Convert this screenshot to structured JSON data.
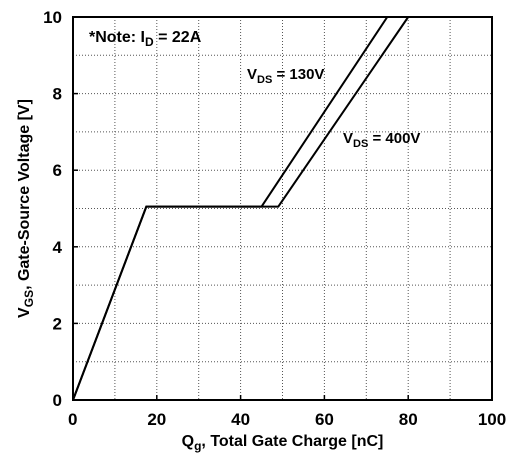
{
  "chart_data": {
    "type": "line",
    "title": "",
    "xlabel": {
      "main": "Q",
      "sub": "g",
      "rest": ", Total Gate Charge [nC]"
    },
    "ylabel": {
      "main": "V",
      "sub": "GS",
      "rest": ", Gate-Source Voltage [V]"
    },
    "xlim": [
      0,
      100
    ],
    "ylim": [
      0,
      10
    ],
    "x_major_ticks": [
      0,
      20,
      40,
      60,
      80,
      100
    ],
    "y_major_ticks": [
      0,
      2,
      4,
      6,
      8,
      10
    ],
    "grid": "dotted, every 10 nC and 1 V",
    "note": {
      "prefix": "*Note: I",
      "sub": "D",
      "suffix": " = 22A"
    },
    "series": [
      {
        "name": {
          "main": "V",
          "sub": "DS",
          "suffix": " = 130V"
        },
        "points": [
          [
            0,
            0
          ],
          [
            17.5,
            5.05
          ],
          [
            45,
            5.05
          ],
          [
            75,
            10
          ]
        ]
      },
      {
        "name": {
          "main": "V",
          "sub": "DS",
          "suffix": " = 400V"
        },
        "points": [
          [
            0,
            0
          ],
          [
            17.5,
            5.05
          ],
          [
            49,
            5.05
          ],
          [
            80,
            10
          ]
        ]
      }
    ]
  }
}
